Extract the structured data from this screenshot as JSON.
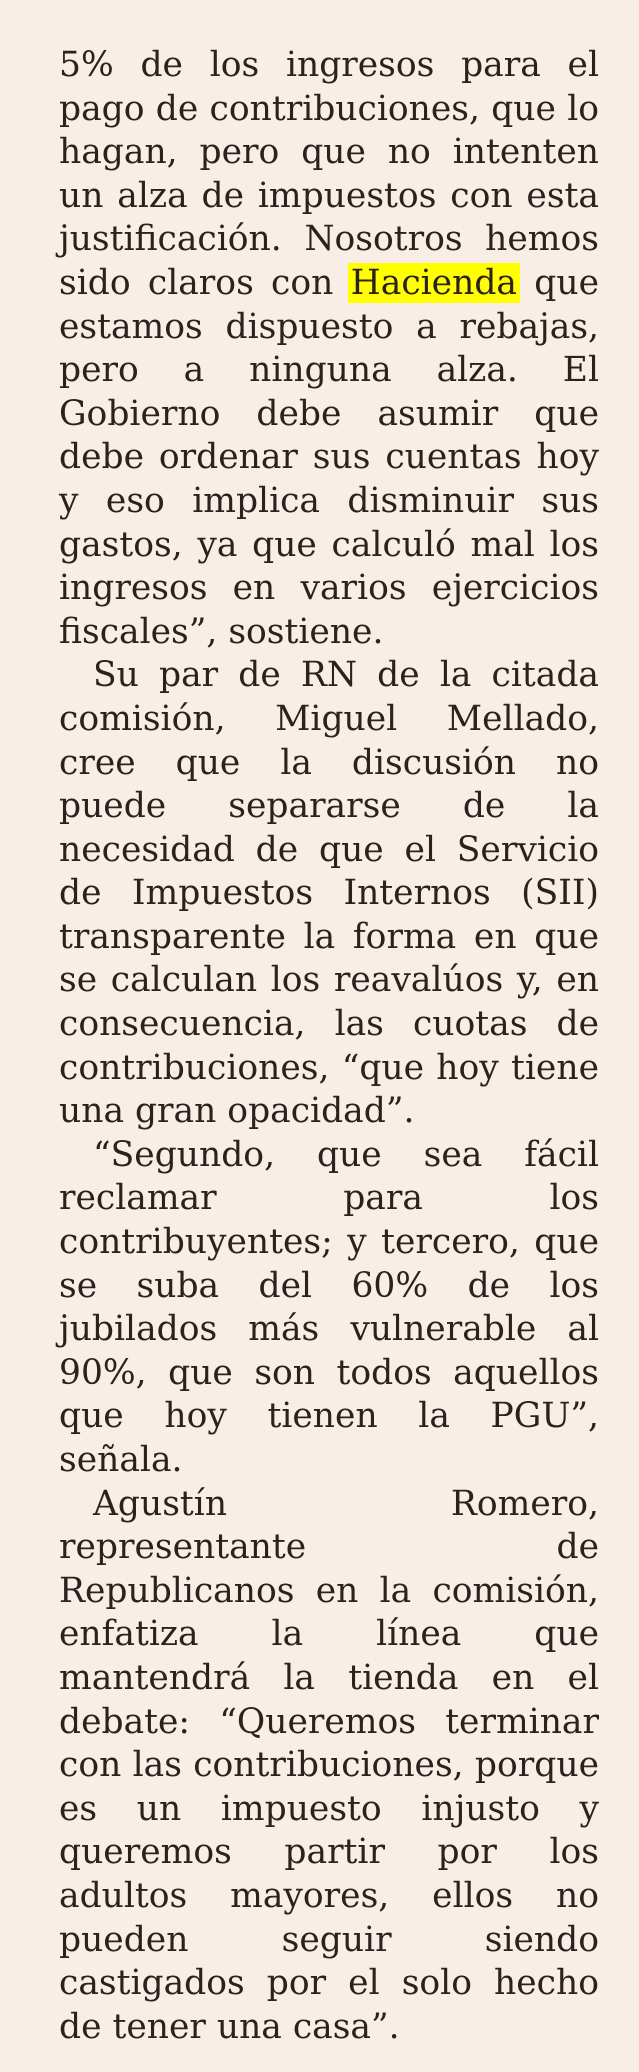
{
  "article": {
    "p1": {
      "before": "5% de los ingresos para el pago de contribuciones, que lo hagan, pero que no intenten un alza de impuestos con esta justificación. Nosotros hemos sido claros con ",
      "highlight": "Hacienda",
      "after": " que estamos dispuesto a rebajas, pero a ninguna alza. El Gobierno debe asumir que debe ordenar sus cuentas hoy y eso implica disminuir sus gastos, ya que calculó mal los ingresos en varios ejercicios fiscales”, sostiene."
    },
    "p2": "Su par de RN de la citada comisión, Miguel Mellado, cree que la discusión no puede separarse de la necesidad de que el Servicio de Impuestos Internos (SII) transparente la forma en que se calculan los reavalúos y, en consecuencia, las cuotas de contribuciones, “que hoy tiene una gran opacidad”.",
    "p3": "“Segundo, que sea fácil reclamar para los contribuyentes; y tercero, que se suba del 60% de los jubilados más vulnerable al 90%, que son todos aquellos que hoy tienen la PGU”, señala.",
    "p4": "Agustín Romero, representante de Republicanos en la comisión, enfatiza la línea que mantendrá la tienda en el debate: “Queremos terminar con las contribuciones, porque es un impuesto injusto y queremos partir por los adultos mayores, ellos no pueden seguir siendo castigados por el solo hecho de tener una casa”."
  },
  "colors": {
    "background": "#f8eee6",
    "text": "#2b2220",
    "highlight": "#ffff00"
  }
}
